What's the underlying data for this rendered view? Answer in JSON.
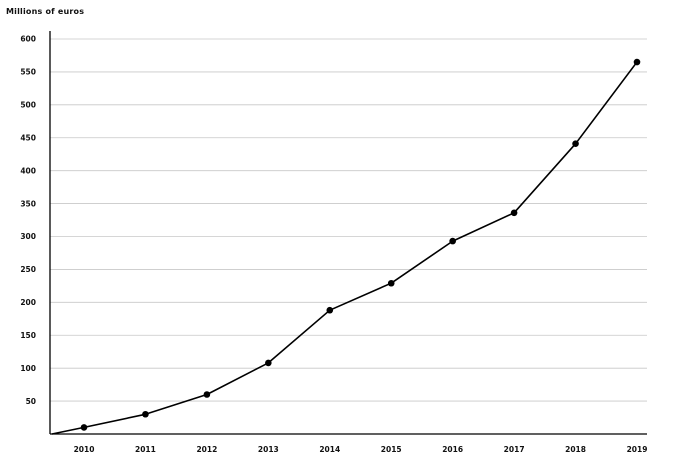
{
  "chart_data": {
    "type": "line",
    "title": "",
    "ylabel": "Millions of euros",
    "xlabel": "",
    "categories": [
      "2010",
      "2011",
      "2012",
      "2013",
      "2014",
      "2015",
      "2016",
      "2017",
      "2018",
      "2019"
    ],
    "values": [
      10,
      30,
      60,
      108,
      188,
      229,
      293,
      336,
      441,
      565
    ],
    "ylim": [
      0,
      600
    ],
    "yticks": [
      50,
      100,
      150,
      200,
      250,
      300,
      350,
      400,
      450,
      500,
      550,
      600
    ],
    "grid": true,
    "legend": "none",
    "colors": {
      "line": "#000000",
      "marker": "#000000",
      "grid": "#c8c8c8",
      "axis": "#000000"
    }
  }
}
